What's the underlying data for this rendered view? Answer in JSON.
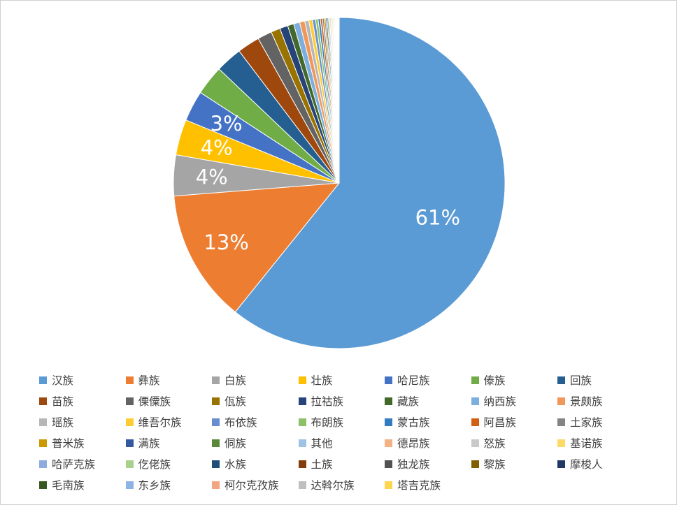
{
  "chart_data": {
    "type": "pie",
    "title": "",
    "legend_position": "bottom",
    "slices": [
      {
        "label": "汉族",
        "value": 61,
        "color": "#5B9BD5",
        "data_label": "61%"
      },
      {
        "label": "彝族",
        "value": 13,
        "color": "#ED7D31",
        "data_label": "13%"
      },
      {
        "label": "白族",
        "value": 4,
        "color": "#A5A5A5",
        "data_label": "4%"
      },
      {
        "label": "壮族",
        "value": 3.5,
        "color": "#FFC000",
        "data_label": "4%"
      },
      {
        "label": "哈尼族",
        "value": 3,
        "color": "#4472C4",
        "data_label": "3%"
      },
      {
        "label": "傣族",
        "value": 2.9,
        "color": "#70AD47",
        "data_label": ""
      },
      {
        "label": "回族",
        "value": 2.6,
        "color": "#255E91",
        "data_label": ""
      },
      {
        "label": "苗族",
        "value": 2.2,
        "color": "#9E480E",
        "data_label": ""
      },
      {
        "label": "傈僳族",
        "value": 1.4,
        "color": "#636363",
        "data_label": ""
      },
      {
        "label": "佤族",
        "value": 0.9,
        "color": "#997300",
        "data_label": ""
      },
      {
        "label": "拉祜族",
        "value": 0.8,
        "color": "#264478",
        "data_label": ""
      },
      {
        "label": "藏族",
        "value": 0.6,
        "color": "#43682B",
        "data_label": ""
      },
      {
        "label": "纳西族",
        "value": 0.6,
        "color": "#7CAFDD",
        "data_label": ""
      },
      {
        "label": "景颇族",
        "value": 0.5,
        "color": "#F1975A",
        "data_label": ""
      },
      {
        "label": "瑶族",
        "value": 0.4,
        "color": "#B7B7B7",
        "data_label": ""
      },
      {
        "label": "维吾尔族",
        "value": 0.35,
        "color": "#FFCD33",
        "data_label": ""
      },
      {
        "label": "布依族",
        "value": 0.3,
        "color": "#698ED0",
        "data_label": ""
      },
      {
        "label": "布朗族",
        "value": 0.25,
        "color": "#8CC168",
        "data_label": ""
      },
      {
        "label": "蒙古族",
        "value": 0.22,
        "color": "#327DC2",
        "data_label": ""
      },
      {
        "label": "阿昌族",
        "value": 0.2,
        "color": "#D26012",
        "data_label": ""
      },
      {
        "label": "土家族",
        "value": 0.18,
        "color": "#848484",
        "data_label": ""
      },
      {
        "label": "普米族",
        "value": 0.15,
        "color": "#CC9A00",
        "data_label": ""
      },
      {
        "label": "满族",
        "value": 0.14,
        "color": "#335AA1",
        "data_label": ""
      },
      {
        "label": "侗族",
        "value": 0.12,
        "color": "#5A8A39",
        "data_label": ""
      },
      {
        "label": "其他",
        "value": 0.12,
        "color": "#9DC3E6",
        "data_label": ""
      },
      {
        "label": "德昂族",
        "value": 0.1,
        "color": "#F4B183",
        "data_label": ""
      },
      {
        "label": "怒族",
        "value": 0.1,
        "color": "#C9C9C9",
        "data_label": ""
      },
      {
        "label": "基诺族",
        "value": 0.1,
        "color": "#FFD966",
        "data_label": ""
      },
      {
        "label": "哈萨克族",
        "value": 0.08,
        "color": "#8FAADC",
        "data_label": ""
      },
      {
        "label": "仡佬族",
        "value": 0.08,
        "color": "#A9D18E",
        "data_label": ""
      },
      {
        "label": "水族",
        "value": 0.07,
        "color": "#1F4E79",
        "data_label": ""
      },
      {
        "label": "土族",
        "value": 0.06,
        "color": "#843C0C",
        "data_label": ""
      },
      {
        "label": "独龙族",
        "value": 0.06,
        "color": "#525252",
        "data_label": ""
      },
      {
        "label": "黎族",
        "value": 0.05,
        "color": "#7F6000",
        "data_label": ""
      },
      {
        "label": "摩梭人",
        "value": 0.05,
        "color": "#203864",
        "data_label": ""
      },
      {
        "label": "毛南族",
        "value": 0.04,
        "color": "#385723",
        "data_label": ""
      },
      {
        "label": "东乡族",
        "value": 0.04,
        "color": "#8EB4E3",
        "data_label": ""
      },
      {
        "label": "柯尔克孜族",
        "value": 0.03,
        "color": "#F4A582",
        "data_label": ""
      },
      {
        "label": "达斡尔族",
        "value": 0.03,
        "color": "#BFBFBF",
        "data_label": ""
      },
      {
        "label": "塔吉克族",
        "value": 0.03,
        "color": "#FFD54F",
        "data_label": ""
      }
    ]
  }
}
